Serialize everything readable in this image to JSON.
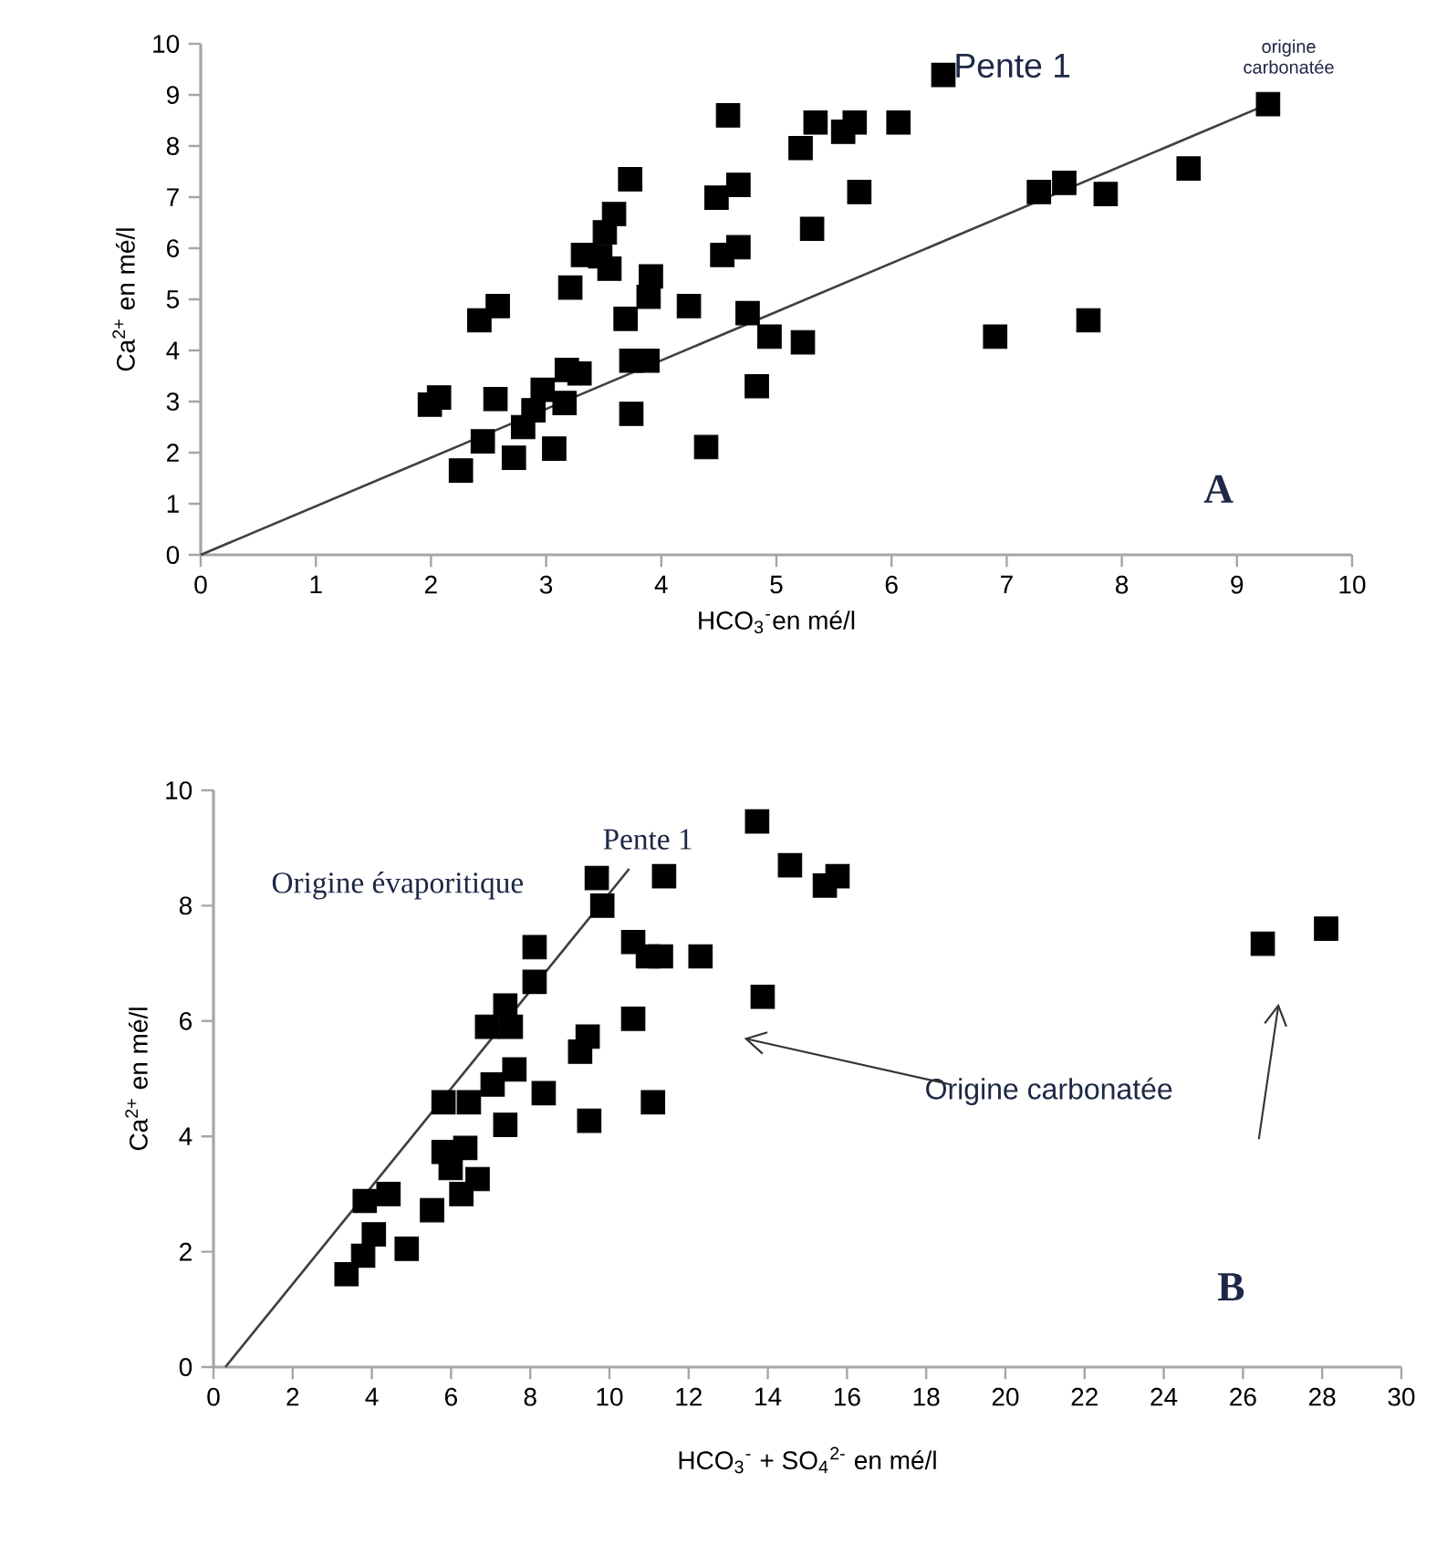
{
  "chart_data": [
    {
      "type": "scatter",
      "xlabel": "HCO$_{3}$$^{-}$en mé/l",
      "ylabel": "Ca$^{2+}$ en mé/l",
      "xlim": [
        0,
        10
      ],
      "ylim": [
        0,
        10
      ],
      "xticks": [
        0,
        1,
        2,
        3,
        4,
        5,
        6,
        7,
        8,
        9,
        10
      ],
      "yticks": [
        0,
        1,
        2,
        3,
        4,
        5,
        6,
        7,
        8,
        9,
        10
      ],
      "marker": "square",
      "series": [
        {
          "type": "scatter",
          "color": "#000000",
          "x": [
            1.99,
            2.07,
            2.26,
            2.45,
            2.42,
            2.58,
            2.56,
            2.72,
            2.8,
            2.89,
            2.97,
            3.16,
            3.07,
            3.18,
            3.29,
            3.21,
            3.32,
            3.47,
            3.55,
            3.51,
            3.59,
            3.73,
            3.69,
            3.74,
            3.74,
            3.88,
            3.89,
            3.91,
            4.24,
            4.39,
            4.58,
            4.48,
            4.67,
            4.53,
            4.67,
            4.75,
            4.83,
            4.94,
            5.21,
            5.31,
            5.23,
            5.34,
            5.58,
            5.68,
            6.06,
            5.72,
            6.45,
            7.28,
            7.5,
            7.86,
            8.58,
            9.27,
            6.9,
            7.71
          ],
          "values": [
            2.94,
            3.08,
            1.65,
            2.22,
            4.59,
            4.87,
            3.05,
            1.9,
            2.5,
            2.83,
            3.23,
            2.97,
            2.08,
            3.62,
            3.55,
            5.23,
            5.87,
            5.84,
            5.6,
            6.31,
            6.67,
            7.35,
            4.62,
            2.76,
            3.8,
            3.8,
            5.05,
            5.45,
            4.87,
            2.11,
            8.6,
            6.99,
            7.24,
            5.87,
            6.02,
            4.73,
            3.3,
            4.27,
            7.96,
            6.38,
            4.16,
            8.46,
            8.28,
            8.46,
            8.46,
            7.1,
            9.39,
            7.1,
            7.28,
            7.06,
            7.56,
            8.82,
            4.27,
            4.59
          ]
        },
        {
          "type": "line",
          "marker": "none",
          "color": "#404040",
          "x": [
            0,
            9.27
          ],
          "values": [
            0,
            8.82
          ]
        }
      ],
      "annotations": [
        "Pente 1",
        "origine carbonatée",
        "A"
      ]
    },
    {
      "type": "scatter",
      "xlabel": "HCO$_{3}$$^{-}$ + SO$_{4}$$^{2-}$ en mé/l",
      "ylabel": "Ca$^{2+}$ en mé/l",
      "xlim": [
        0,
        30
      ],
      "ylim": [
        0,
        10
      ],
      "xticks": [
        0,
        2,
        4,
        6,
        8,
        10,
        12,
        14,
        16,
        18,
        20,
        22,
        24,
        26,
        28,
        30
      ],
      "yticks": [
        0,
        2,
        4,
        6,
        8,
        10
      ],
      "marker": "square",
      "series": [
        {
          "type": "scatter",
          "color": "#000000",
          "x": [
            3.36,
            3.78,
            4.05,
            3.82,
            4.42,
            4.88,
            5.52,
            6.26,
            6.67,
            5.81,
            6.36,
            5.99,
            5.81,
            6.45,
            7.05,
            7.37,
            7.6,
            8.34,
            6.91,
            7.51,
            7.37,
            8.11,
            8.11,
            9.26,
            9.45,
            9.49,
            10.6,
            11.1,
            9.68,
            9.82,
            10.6,
            10.97,
            11.3,
            12.3,
            11.38,
            13.87,
            13.73,
            14.56,
            15.44,
            15.76,
            26.5,
            28.1
          ],
          "values": [
            1.61,
            1.93,
            2.3,
            2.88,
            3.0,
            2.05,
            2.72,
            3.0,
            3.26,
            3.73,
            3.8,
            3.45,
            4.59,
            4.59,
            4.9,
            4.2,
            5.16,
            4.75,
            5.9,
            5.9,
            6.27,
            6.68,
            7.28,
            5.47,
            5.73,
            4.27,
            6.04,
            4.59,
            8.48,
            8.0,
            7.37,
            7.12,
            7.12,
            7.12,
            8.51,
            6.42,
            9.46,
            8.7,
            8.35,
            8.51,
            7.34,
            7.6
          ]
        },
        {
          "type": "line",
          "marker": "none",
          "color": "#404040",
          "x": [
            0.3,
            10.5
          ],
          "values": [
            0,
            8.64
          ]
        }
      ],
      "annotations": [
        "Pente 1",
        "Origine évaporitique",
        "Origine carbonatée",
        "B"
      ]
    }
  ]
}
